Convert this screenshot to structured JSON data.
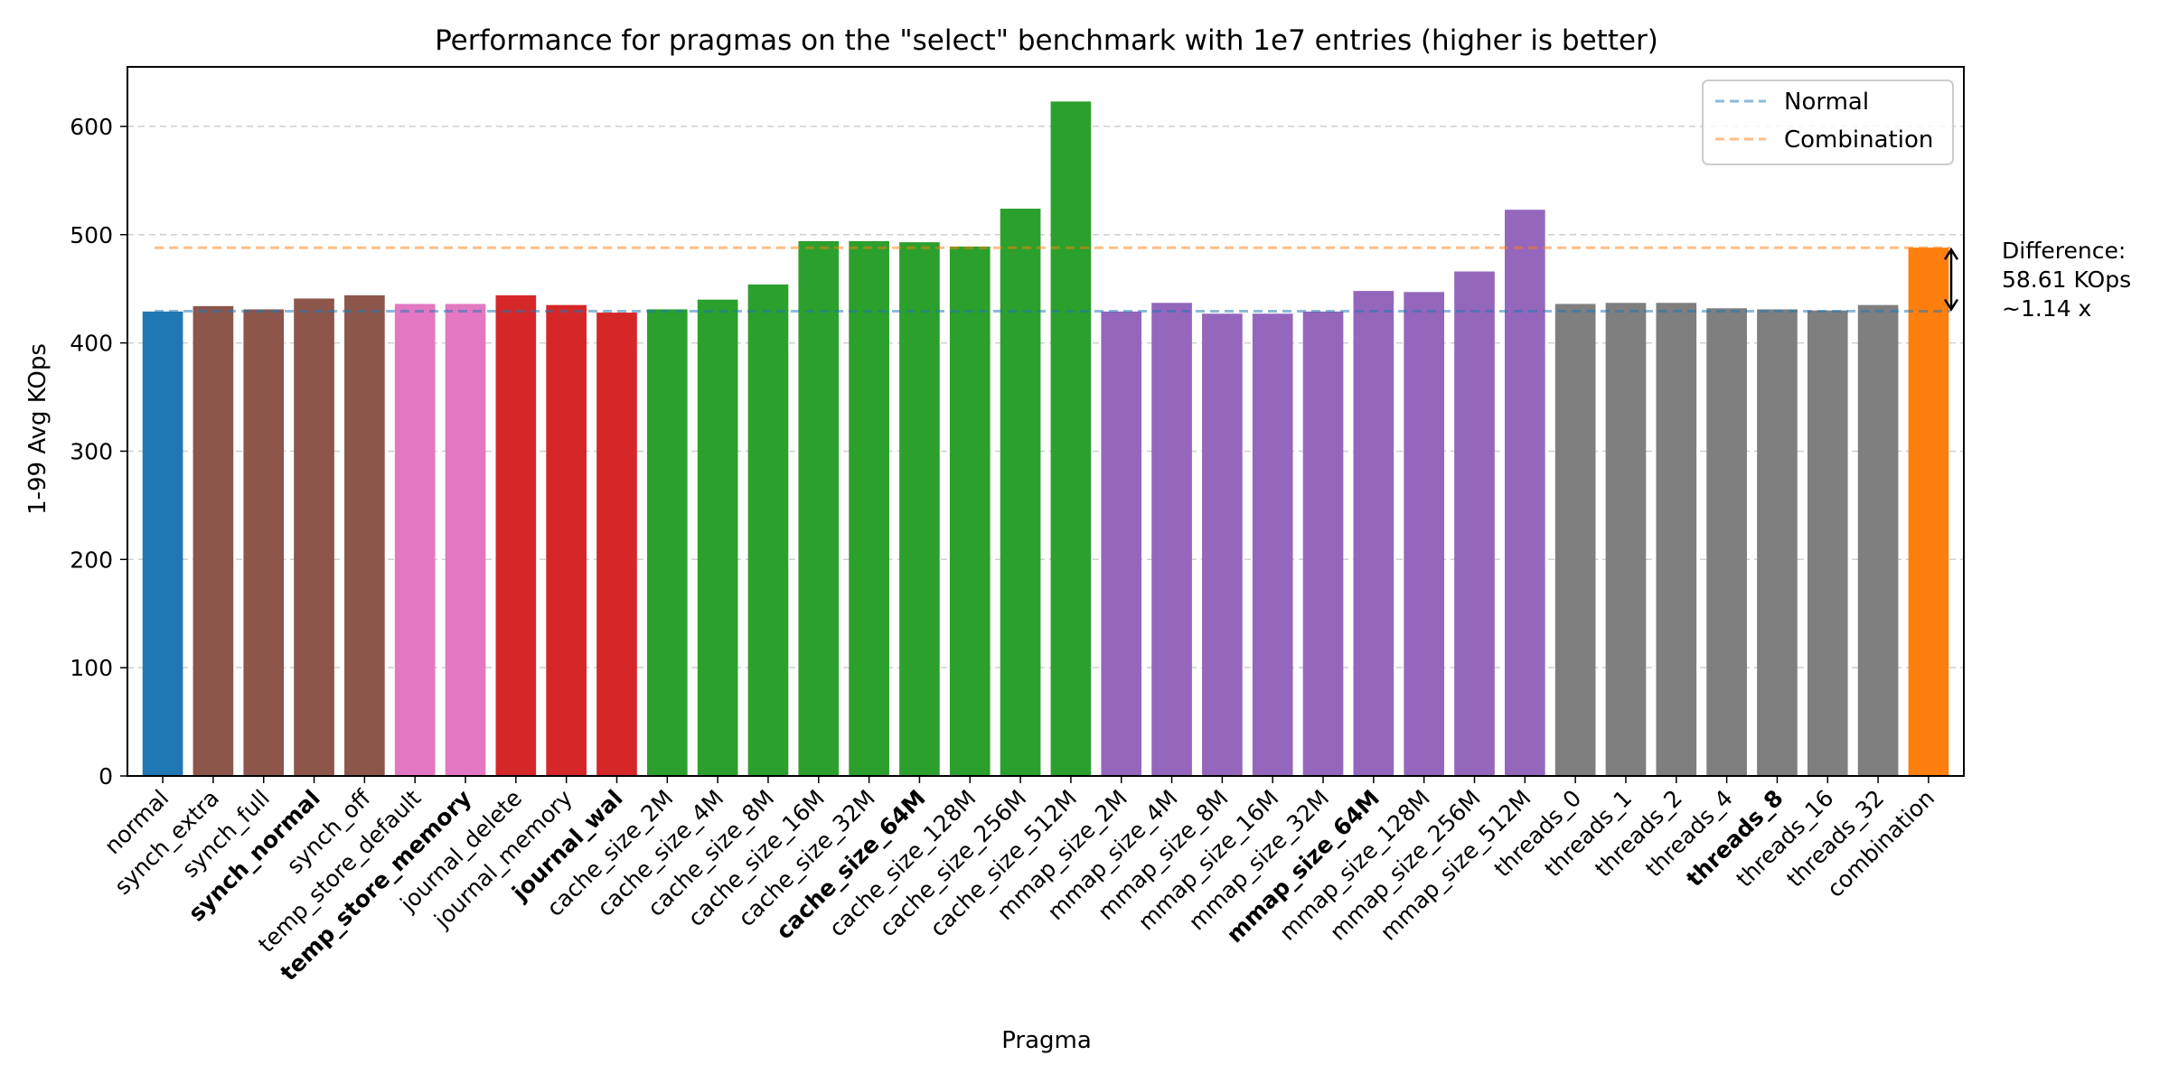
{
  "chart_data": {
    "type": "bar",
    "title": "Performance for pragmas on the \"select\" benchmark with 1e7 entries (higher is better)",
    "xlabel": "Pragma",
    "ylabel": "1-99 Avg KOps",
    "ylim": [
      0,
      655
    ],
    "yticks": [
      0,
      100,
      200,
      300,
      400,
      500,
      600
    ],
    "grid": "horizontal dashed",
    "categories": [
      "normal",
      "synch_extra",
      "synch_full",
      "synch_normal",
      "synch_off",
      "temp_store_default",
      "temp_store_memory",
      "journal_delete",
      "journal_memory",
      "journal_wal",
      "cache_size_2M",
      "cache_size_4M",
      "cache_size_8M",
      "cache_size_16M",
      "cache_size_32M",
      "cache_size_64M",
      "cache_size_128M",
      "cache_size_256M",
      "cache_size_512M",
      "mmap_size_2M",
      "mmap_size_4M",
      "mmap_size_8M",
      "mmap_size_16M",
      "mmap_size_32M",
      "mmap_size_64M",
      "mmap_size_128M",
      "mmap_size_256M",
      "mmap_size_512M",
      "threads_0",
      "threads_1",
      "threads_2",
      "threads_4",
      "threads_8",
      "threads_16",
      "threads_32",
      "combination"
    ],
    "values": [
      429,
      434,
      431,
      441,
      444,
      436,
      436,
      444,
      435,
      428,
      431,
      440,
      454,
      494,
      494,
      493,
      489,
      524,
      623,
      429,
      437,
      427,
      427,
      429,
      448,
      447,
      466,
      523,
      436,
      437,
      437,
      432,
      431,
      430,
      435,
      488
    ],
    "bold_categories": [
      "synch_normal",
      "temp_store_memory",
      "journal_wal",
      "cache_size_64M",
      "mmap_size_64M",
      "threads_8"
    ],
    "bar_colors": [
      "#1f77b4",
      "#8c564b",
      "#8c564b",
      "#8c564b",
      "#8c564b",
      "#e377c2",
      "#e377c2",
      "#d62728",
      "#d62728",
      "#d62728",
      "#2ca02c",
      "#2ca02c",
      "#2ca02c",
      "#2ca02c",
      "#2ca02c",
      "#2ca02c",
      "#2ca02c",
      "#2ca02c",
      "#2ca02c",
      "#9467bd",
      "#9467bd",
      "#9467bd",
      "#9467bd",
      "#9467bd",
      "#9467bd",
      "#9467bd",
      "#9467bd",
      "#9467bd",
      "#7f7f7f",
      "#7f7f7f",
      "#7f7f7f",
      "#7f7f7f",
      "#7f7f7f",
      "#7f7f7f",
      "#7f7f7f",
      "#ff7f0e"
    ],
    "reference_lines": [
      {
        "name": "Normal",
        "value": 429.3,
        "color": "#1f77b4"
      },
      {
        "name": "Combination",
        "value": 487.9,
        "color": "#ff7f0e"
      }
    ],
    "legend_position": "top-right",
    "annotation": {
      "lines": [
        "Difference:",
        "58.61 KOps",
        "~1.14 x"
      ]
    }
  }
}
